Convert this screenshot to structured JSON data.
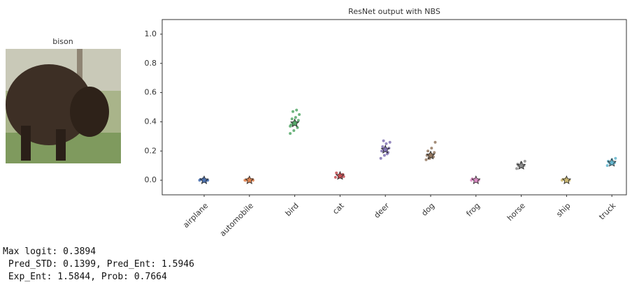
{
  "image": {
    "title": "bison"
  },
  "chart_data": {
    "type": "strip",
    "title": "ResNet output with NBS",
    "categories": [
      "airplane",
      "automobile",
      "bird",
      "cat",
      "deer",
      "dog",
      "frog",
      "horse",
      "ship",
      "truck"
    ],
    "colors": [
      "#4c72b0",
      "#dd8452",
      "#55a868",
      "#c44e52",
      "#8172b3",
      "#937860",
      "#da8bc3",
      "#8c8c8c",
      "#ccb974",
      "#64b5cd"
    ],
    "means": [
      0.0,
      0.0,
      0.39,
      0.03,
      0.21,
      0.17,
      0.0,
      0.1,
      0.0,
      0.12
    ],
    "samples": [
      [
        0.0,
        0.01,
        0.0,
        0.005,
        0.01,
        0.0
      ],
      [
        0.0,
        0.01,
        0.005,
        0.0,
        0.01,
        0.0
      ],
      [
        0.32,
        0.34,
        0.36,
        0.38,
        0.4,
        0.41,
        0.42,
        0.43,
        0.45,
        0.47,
        0.48,
        0.37
      ],
      [
        0.02,
        0.03,
        0.04,
        0.05,
        0.03,
        0.025
      ],
      [
        0.15,
        0.17,
        0.19,
        0.2,
        0.21,
        0.22,
        0.23,
        0.25,
        0.26,
        0.27,
        0.18
      ],
      [
        0.14,
        0.15,
        0.16,
        0.17,
        0.18,
        0.19,
        0.2,
        0.22,
        0.26,
        0.15
      ],
      [
        0.0,
        0.005,
        0.0,
        0.01,
        0.0
      ],
      [
        0.08,
        0.09,
        0.1,
        0.11,
        0.12,
        0.13,
        0.1
      ],
      [
        0.0,
        0.01,
        0.0,
        0.005,
        0.01
      ],
      [
        0.1,
        0.11,
        0.12,
        0.13,
        0.14,
        0.15,
        0.12
      ]
    ],
    "ylim": [
      -0.1,
      1.1
    ],
    "yticks": [
      {
        "value": 0,
        "label": "0.0"
      },
      0.2,
      0.4,
      0.6,
      0.8,
      {
        "value": 1,
        "label": "1.0"
      }
    ]
  },
  "output": {
    "lines": [
      "Max logit: 0.3894",
      " Pred_STD: 0.1399, Pred_Ent: 1.5946",
      " Exp_Ent: 1.5844, Prob: 0.7664"
    ]
  }
}
